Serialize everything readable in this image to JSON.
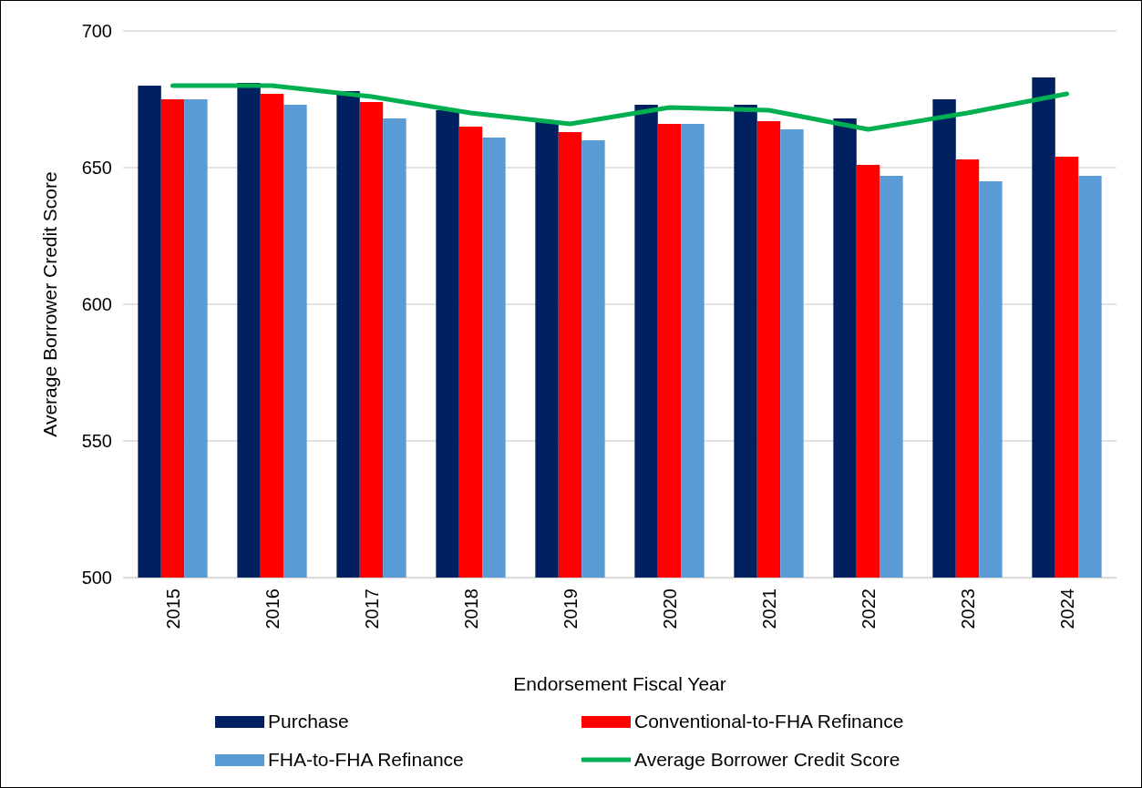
{
  "chart_data": {
    "type": "bar",
    "xlabel": "Endorsement Fiscal Year",
    "ylabel": "Average Borrower Credit Score",
    "categories": [
      "2015",
      "2016",
      "2017",
      "2018",
      "2019",
      "2020",
      "2021",
      "2022",
      "2023",
      "2024"
    ],
    "series": [
      {
        "name": "Purchase",
        "color": "#002060",
        "values": [
          680,
          681,
          678,
          671,
          667,
          673,
          673,
          668,
          675,
          683
        ]
      },
      {
        "name": "Conventional-to-FHA Refinance",
        "color": "#ff0000",
        "values": [
          675,
          677,
          674,
          665,
          663,
          666,
          667,
          651,
          653,
          654
        ]
      },
      {
        "name": "FHA-to-FHA Refinance",
        "color": "#5b9bd5",
        "values": [
          675,
          673,
          668,
          661,
          660,
          666,
          664,
          647,
          645,
          647
        ]
      },
      {
        "name": "Average Borrower Credit Score",
        "type": "line",
        "color": "#00b050",
        "values": [
          680,
          680,
          676,
          670,
          666,
          672,
          671,
          664,
          670,
          677
        ]
      }
    ],
    "ylim": [
      500,
      700
    ],
    "yticks": [
      500,
      550,
      600,
      650,
      700
    ],
    "grid": "y",
    "legend": "bottom",
    "marker": "none"
  }
}
